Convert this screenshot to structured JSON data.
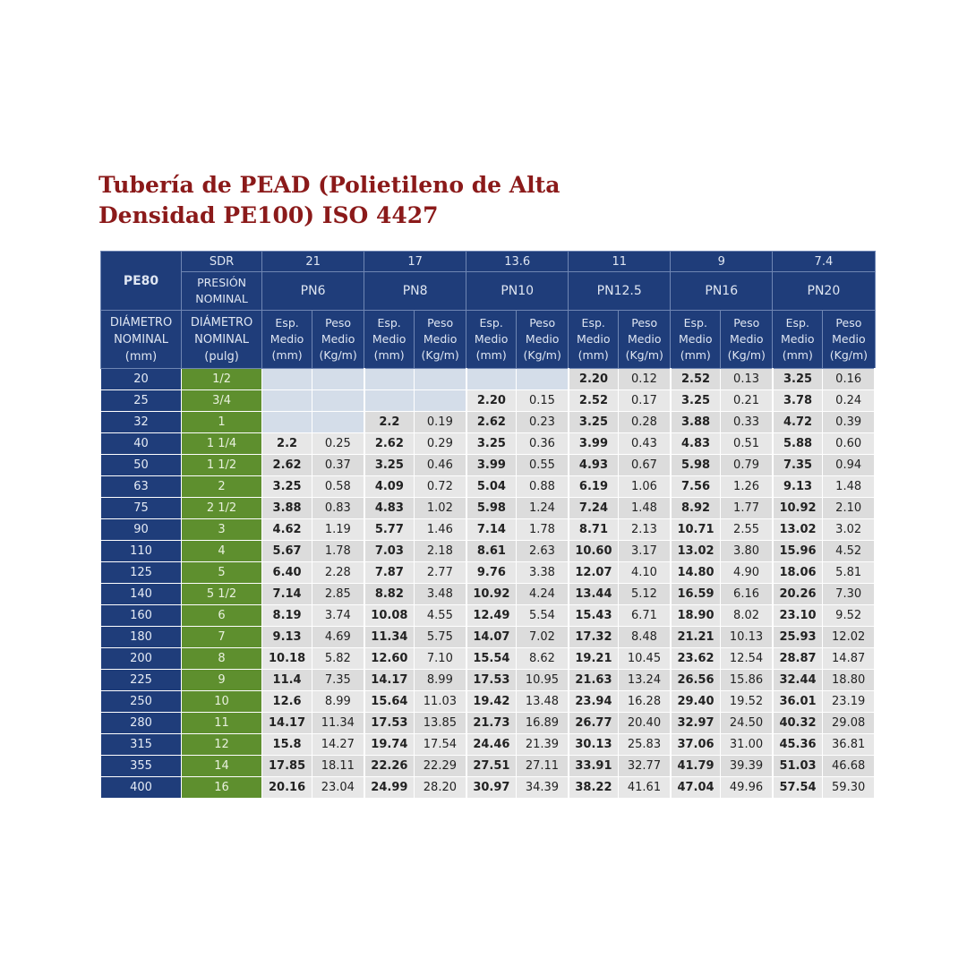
{
  "title": {
    "line1": "Tubería de PEAD (Polietileno de Alta",
    "line2": "Densidad PE100) ISO 4427"
  },
  "header": {
    "pe80": "PE80",
    "sdr_label": "SDR",
    "presion_line1": "PRESIÓN",
    "presion_line2": "NOMINAL",
    "diam_nom_line1": "DIÁMETRO",
    "diam_nom_line2": "NOMINAL",
    "diam_nom_line3": "(mm)",
    "diam_in_line1": "DIÁMETRO",
    "diam_in_line2": "NOMINAL",
    "diam_in_line3": "(pulg)",
    "esp_line1": "Esp.",
    "esp_line2": "Medio",
    "esp_line3": "(mm)",
    "peso_line1": "Peso",
    "peso_line2": "Medio",
    "peso_line3": "(Kg/m)",
    "groups": [
      {
        "sdr": "21",
        "pn": "PN6"
      },
      {
        "sdr": "17",
        "pn": "PN8"
      },
      {
        "sdr": "13.6",
        "pn": "PN10"
      },
      {
        "sdr": "11",
        "pn": "PN12.5"
      },
      {
        "sdr": "9",
        "pn": "PN16"
      },
      {
        "sdr": "7.4",
        "pn": "PN20"
      }
    ]
  },
  "rows": [
    {
      "d": "20",
      "inch": "1/2",
      "v": [
        "",
        "",
        "",
        "",
        "",
        "",
        "2.20",
        "0.12",
        "2.52",
        "0.13",
        "3.25",
        "0.16"
      ]
    },
    {
      "d": "25",
      "inch": "3/4",
      "v": [
        "",
        "",
        "",
        "",
        "2.20",
        "0.15",
        "2.52",
        "0.17",
        "3.25",
        "0.21",
        "3.78",
        "0.24"
      ]
    },
    {
      "d": "32",
      "inch": "1",
      "v": [
        "",
        "",
        "2.2",
        "0.19",
        "2.62",
        "0.23",
        "3.25",
        "0.28",
        "3.88",
        "0.33",
        "4.72",
        "0.39"
      ]
    },
    {
      "d": "40",
      "inch": "1 1/4",
      "v": [
        "2.2",
        "0.25",
        "2.62",
        "0.29",
        "3.25",
        "0.36",
        "3.99",
        "0.43",
        "4.83",
        "0.51",
        "5.88",
        "0.60"
      ]
    },
    {
      "d": "50",
      "inch": "1 1/2",
      "v": [
        "2.62",
        "0.37",
        "3.25",
        "0.46",
        "3.99",
        "0.55",
        "4.93",
        "0.67",
        "5.98",
        "0.79",
        "7.35",
        "0.94"
      ]
    },
    {
      "d": "63",
      "inch": "2",
      "v": [
        "3.25",
        "0.58",
        "4.09",
        "0.72",
        "5.04",
        "0.88",
        "6.19",
        "1.06",
        "7.56",
        "1.26",
        "9.13",
        "1.48"
      ]
    },
    {
      "d": "75",
      "inch": "2 1/2",
      "v": [
        "3.88",
        "0.83",
        "4.83",
        "1.02",
        "5.98",
        "1.24",
        "7.24",
        "1.48",
        "8.92",
        "1.77",
        "10.92",
        "2.10"
      ]
    },
    {
      "d": "90",
      "inch": "3",
      "v": [
        "4.62",
        "1.19",
        "5.77",
        "1.46",
        "7.14",
        "1.78",
        "8.71",
        "2.13",
        "10.71",
        "2.55",
        "13.02",
        "3.02"
      ]
    },
    {
      "d": "110",
      "inch": "4",
      "v": [
        "5.67",
        "1.78",
        "7.03",
        "2.18",
        "8.61",
        "2.63",
        "10.60",
        "3.17",
        "13.02",
        "3.80",
        "15.96",
        "4.52"
      ]
    },
    {
      "d": "125",
      "inch": "5",
      "v": [
        "6.40",
        "2.28",
        "7.87",
        "2.77",
        "9.76",
        "3.38",
        "12.07",
        "4.10",
        "14.80",
        "4.90",
        "18.06",
        "5.81"
      ]
    },
    {
      "d": "140",
      "inch": "5 1/2",
      "v": [
        "7.14",
        "2.85",
        "8.82",
        "3.48",
        "10.92",
        "4.24",
        "13.44",
        "5.12",
        "16.59",
        "6.16",
        "20.26",
        "7.30"
      ]
    },
    {
      "d": "160",
      "inch": "6",
      "v": [
        "8.19",
        "3.74",
        "10.08",
        "4.55",
        "12.49",
        "5.54",
        "15.43",
        "6.71",
        "18.90",
        "8.02",
        "23.10",
        "9.52"
      ]
    },
    {
      "d": "180",
      "inch": "7",
      "v": [
        "9.13",
        "4.69",
        "11.34",
        "5.75",
        "14.07",
        "7.02",
        "17.32",
        "8.48",
        "21.21",
        "10.13",
        "25.93",
        "12.02"
      ]
    },
    {
      "d": "200",
      "inch": "8",
      "v": [
        "10.18",
        "5.82",
        "12.60",
        "7.10",
        "15.54",
        "8.62",
        "19.21",
        "10.45",
        "23.62",
        "12.54",
        "28.87",
        "14.87"
      ]
    },
    {
      "d": "225",
      "inch": "9",
      "v": [
        "11.4",
        "7.35",
        "14.17",
        "8.99",
        "17.53",
        "10.95",
        "21.63",
        "13.24",
        "26.56",
        "15.86",
        "32.44",
        "18.80"
      ]
    },
    {
      "d": "250",
      "inch": "10",
      "v": [
        "12.6",
        "8.99",
        "15.64",
        "11.03",
        "19.42",
        "13.48",
        "23.94",
        "16.28",
        "29.40",
        "19.52",
        "36.01",
        "23.19"
      ]
    },
    {
      "d": "280",
      "inch": "11",
      "v": [
        "14.17",
        "11.34",
        "17.53",
        "13.85",
        "21.73",
        "16.89",
        "26.77",
        "20.40",
        "32.97",
        "24.50",
        "40.32",
        "29.08"
      ]
    },
    {
      "d": "315",
      "inch": "12",
      "v": [
        "15.8",
        "14.27",
        "19.74",
        "17.54",
        "24.46",
        "21.39",
        "30.13",
        "25.83",
        "37.06",
        "31.00",
        "45.36",
        "36.81"
      ]
    },
    {
      "d": "355",
      "inch": "14",
      "v": [
        "17.85",
        "18.11",
        "22.26",
        "22.29",
        "27.51",
        "27.11",
        "33.91",
        "32.77",
        "41.79",
        "39.39",
        "51.03",
        "46.68"
      ]
    },
    {
      "d": "400",
      "inch": "16",
      "v": [
        "20.16",
        "23.04",
        "24.99",
        "28.20",
        "30.97",
        "34.39",
        "38.22",
        "41.61",
        "47.04",
        "49.96",
        "57.54",
        "59.30"
      ]
    }
  ]
}
